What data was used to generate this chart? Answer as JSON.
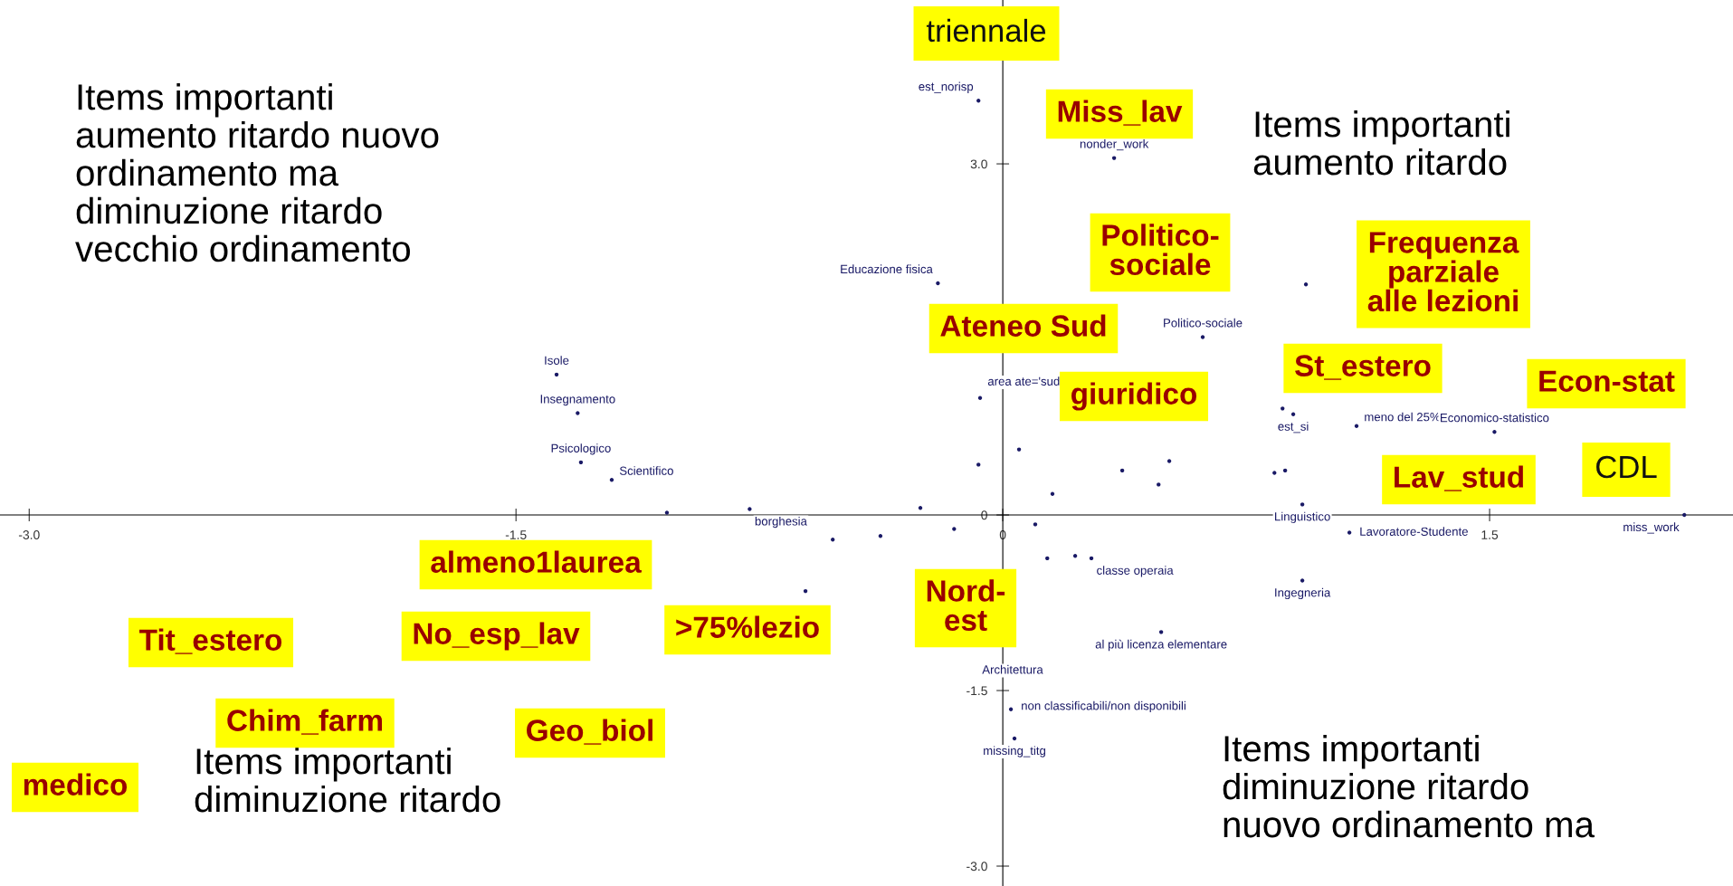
{
  "chart_data": {
    "type": "scatter",
    "x": [
      -0.075,
      0.343,
      -0.2,
      0.934,
      0.616,
      -1.375,
      -0.07,
      -1.31,
      0.862,
      0.895,
      1.09,
      1.515,
      -1.3,
      -1.205,
      -0.075,
      0.05,
      0.368,
      0.513,
      0.48,
      0.153,
      0.837,
      0.87,
      0.923,
      -1.035,
      -0.78,
      -0.254,
      -0.15,
      -0.377,
      0.1,
      -0.524,
      2.1,
      1.068,
      0.137,
      0.223,
      0.273,
      0.923,
      -0.608,
      0.488,
      0.025,
      0.036
    ],
    "values": [
      3.54,
      3.05,
      1.98,
      1.97,
      1.52,
      1.2,
      1.0,
      0.87,
      0.91,
      0.86,
      0.76,
      0.71,
      0.45,
      0.3,
      0.43,
      0.56,
      0.38,
      0.46,
      0.26,
      0.18,
      0.36,
      0.38,
      0.09,
      0.02,
      0.05,
      0.06,
      -0.12,
      -0.18,
      -0.08,
      -0.21,
      0.0,
      -0.15,
      -0.37,
      -0.35,
      -0.37,
      -0.56,
      -0.65,
      -1.0,
      -1.66,
      -1.91
    ],
    "color": "#1a1a66",
    "marker": "circle",
    "grid": false,
    "xlim": [
      -3.09,
      2.25
    ],
    "ylim": [
      -3.17,
      4.4
    ],
    "xticks": [
      {
        "value": -3.0,
        "label": "-3.0"
      },
      {
        "value": -1.5,
        "label": "-1.5"
      },
      0,
      {
        "value": 1.5,
        "label": "1.5"
      }
    ],
    "yticks": [
      {
        "value": 3.0,
        "label": "3.0"
      },
      0,
      {
        "value": -1.5,
        "label": "-1.5"
      },
      {
        "value": -3.0,
        "label": "-3.0"
      }
    ],
    "annotations": [
      {
        "text": "est_norisp",
        "x": -0.075,
        "y": 3.54
      },
      {
        "text": "nonder_work",
        "x": 0.343,
        "y": 3.05
      },
      {
        "text": "Educazione fisica",
        "x": -0.2,
        "y": 1.98
      },
      {
        "text": "Politico-sociale",
        "x": 0.616,
        "y": 1.52
      },
      {
        "text": "Isole",
        "x": -1.375,
        "y": 1.2
      },
      {
        "text": "area ate='sud'",
        "x": -0.07,
        "y": 1.0
      },
      {
        "text": "Insegnamento",
        "x": -1.31,
        "y": 0.87
      },
      {
        "text": "est_si",
        "x": 0.895,
        "y": 0.86
      },
      {
        "text": "meno del 25%",
        "x": 1.09,
        "y": 0.76
      },
      {
        "text": "Economico-statistico",
        "x": 1.515,
        "y": 0.71
      },
      {
        "text": "Psicologico",
        "x": -1.3,
        "y": 0.45
      },
      {
        "text": "Scientifico",
        "x": -1.205,
        "y": 0.3
      },
      {
        "text": "Linguistico",
        "x": 0.923,
        "y": 0.09
      },
      {
        "text": "borghesia",
        "x": -0.78,
        "y": 0.05
      },
      {
        "text": "miss_work",
        "x": 2.1,
        "y": 0.0
      },
      {
        "text": "Lavoratore-Studente",
        "x": 1.068,
        "y": -0.15
      },
      {
        "text": "classe operaia",
        "x": 0.273,
        "y": -0.37
      },
      {
        "text": "Ingegneria",
        "x": 0.923,
        "y": -0.56
      },
      {
        "text": "al più licenza elementare",
        "x": 0.488,
        "y": -1.0
      },
      {
        "text": "non classificabili/non disponibili",
        "x": 0.025,
        "y": -1.66
      },
      {
        "text": "missing_titg",
        "x": 0.036,
        "y": -1.91
      },
      "triennale",
      "Miss_lav",
      "Politico-\nsociale",
      "Frequenza\nparziale\nalle lezioni",
      "Ateneo Sud",
      "St_estero",
      "Econ-stat",
      "giuridico",
      "Lav_stud",
      "CDL",
      "almeno1laurea",
      "Nord-\nest",
      "Tit_estero",
      "No_esp_lav",
      ">75%lezio",
      "Chim_farm",
      "Geo_biol",
      "medico",
      "Items importanti\naumento ritardo nuovo\nordinamento ma\ndiminuzione ritardo\nvecchio ordinamento",
      "Items importanti\naumento ritardo",
      "Items importanti\ndiminuzione ritardo",
      "Items importanti\ndiminuzione ritardo\nnuovo ordinamento ma",
      "Architettura"
    ]
  }
}
